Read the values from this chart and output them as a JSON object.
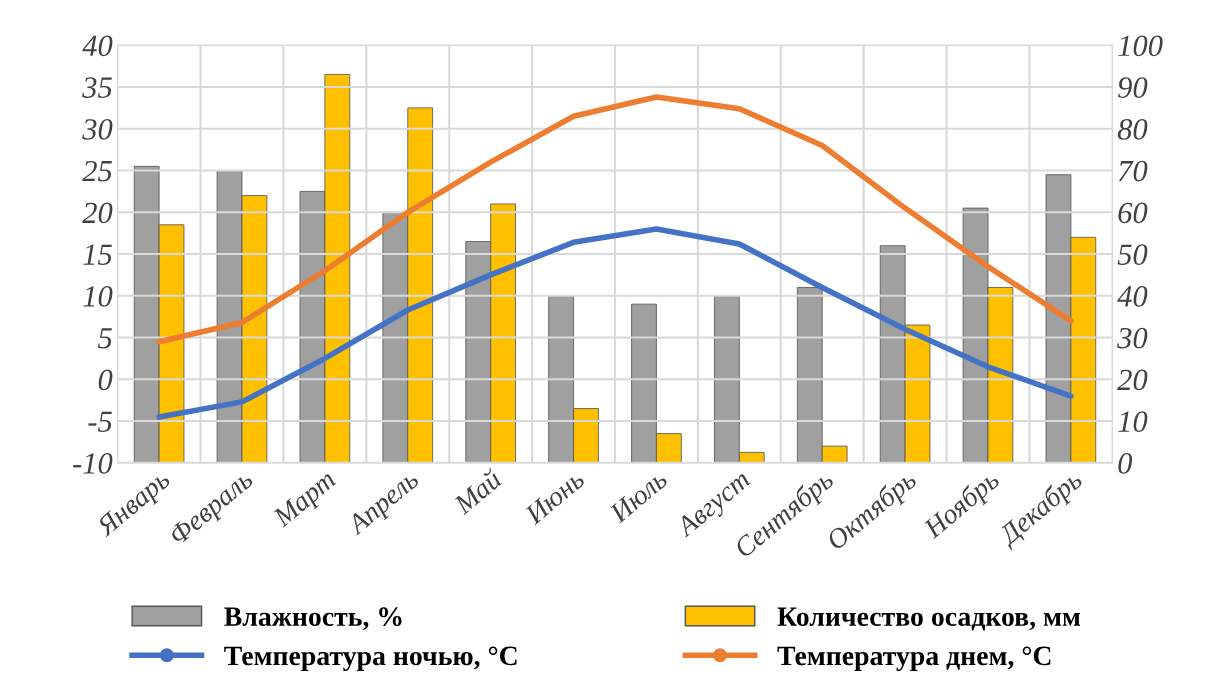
{
  "chart_data": {
    "type": "bar",
    "categories": [
      "Январь",
      "Февраль",
      "Март",
      "Апрель",
      "Май",
      "Июнь",
      "Июль",
      "Август",
      "Сентябрь",
      "Октябрь",
      "Ноябрь",
      "Декабрь"
    ],
    "series": [
      {
        "name": "Влажность, %",
        "axis": "y2",
        "color": "#a0a0a0",
        "values": [
          71,
          70,
          65,
          60,
          53,
          40,
          38,
          40,
          42,
          52,
          61,
          69
        ]
      },
      {
        "name": "Количество осадков, мм",
        "axis": "y2",
        "color": "#ffc000",
        "values": [
          57,
          64,
          93,
          85,
          62,
          13,
          7,
          2.5,
          4,
          33,
          42,
          54
        ]
      },
      {
        "name": "Температура ночью, °C",
        "type": "line",
        "axis": "y",
        "color": "#4472c4",
        "values": [
          -4.5,
          -2.7,
          2.5,
          8.3,
          12.5,
          16.4,
          18,
          16.2,
          11,
          6,
          1.5,
          -2
        ]
      },
      {
        "name": "Температура днем, °C",
        "type": "line",
        "axis": "y",
        "color": "#ed7d31",
        "values": [
          4.5,
          6.8,
          13,
          20,
          26,
          31.5,
          33.8,
          32.4,
          28,
          20.5,
          13.5,
          7
        ]
      }
    ],
    "ylim": [
      -10,
      40
    ],
    "yticks": [
      -10,
      -5,
      0,
      5,
      10,
      15,
      20,
      25,
      30,
      35,
      40
    ],
    "y2lim": [
      0,
      100
    ],
    "y2ticks": [
      0,
      10,
      20,
      30,
      40,
      50,
      60,
      70,
      80,
      90,
      100
    ],
    "grid": true,
    "legend": "bottom",
    "marker": "none",
    "line_style": "solid"
  }
}
